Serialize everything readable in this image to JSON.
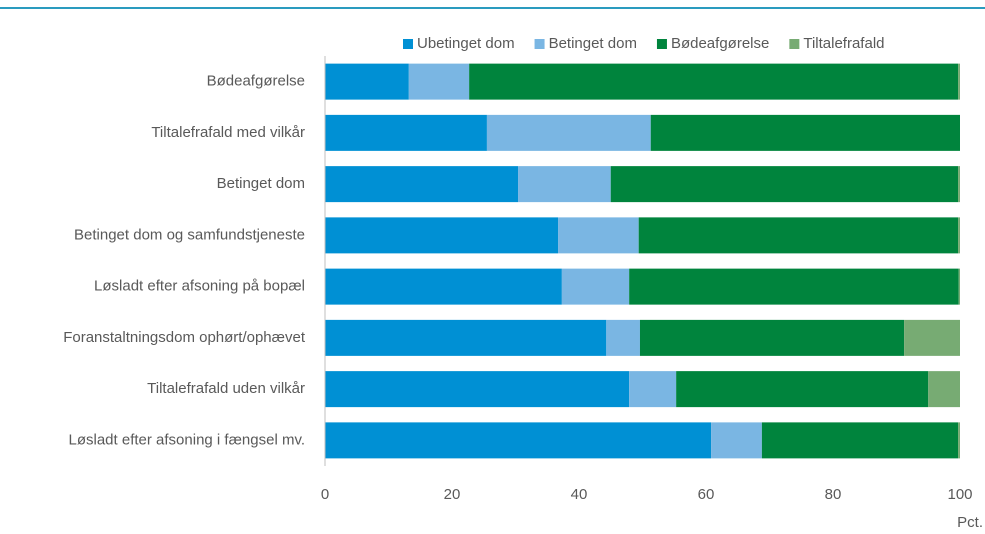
{
  "chart_data": {
    "type": "stacked-bar-horizontal",
    "categories": [
      "Bødeafgørelse",
      "Tiltalefrafald med vilkår",
      "Betinget dom",
      "Betinget dom og samfundstjeneste",
      "Løsladt efter afsoning på bopæl",
      "Foranstaltningsdom ophørt/ophævet",
      "Tiltalefrafald uden vilkår",
      "Løsladt efter afsoning i fængsel mv."
    ],
    "series": [
      {
        "name": "Ubetinget dom",
        "color": "#0090d4",
        "values": [
          13.2,
          25.5,
          30.4,
          36.7,
          37.3,
          44.3,
          47.9,
          60.8
        ]
      },
      {
        "name": "Betinget dom",
        "color": "#7ab6e3",
        "values": [
          9.5,
          25.8,
          14.6,
          12.7,
          10.6,
          5.3,
          7.4,
          8.0
        ]
      },
      {
        "name": "Bødeafgørelse",
        "color": "#00843d",
        "values": [
          77.0,
          48.7,
          54.7,
          50.3,
          51.9,
          41.6,
          39.7,
          30.9
        ]
      },
      {
        "name": "Tiltalefrafald",
        "color": "#77ab73",
        "values": [
          0.3,
          0,
          0.3,
          0.3,
          0.2,
          8.8,
          5.0,
          0.3
        ]
      }
    ],
    "xlim": [
      0,
      100
    ],
    "xticks": [
      0,
      20,
      40,
      60,
      80,
      100
    ],
    "xlabel": "Pct.",
    "legend": "top"
  }
}
